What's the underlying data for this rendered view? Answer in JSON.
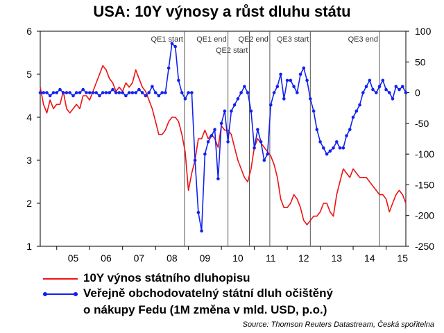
{
  "title": "USA: 10Y výnosy a růst dluhu státu",
  "source": "Source: Thomson Reuters Datastream, Česká spořitelna",
  "colors": {
    "series1": "#ee1111",
    "series2": "#1122ee",
    "axis": "#000000",
    "event_line": "#555555"
  },
  "chart_data": {
    "type": "line",
    "title": "USA: 10Y výnosy a růst dluhu státu",
    "x_tick_labels": [
      "05",
      "06",
      "07",
      "08",
      "09",
      "10",
      "11",
      "12",
      "13",
      "14",
      "15"
    ],
    "xlim": [
      2004.5,
      2015.6
    ],
    "y_left": {
      "lim": [
        1,
        6
      ],
      "ticks": [
        1,
        2,
        3,
        4,
        5,
        6
      ]
    },
    "y_right": {
      "lim": [
        -250,
        100
      ],
      "ticks": [
        -250,
        -200,
        -150,
        -100,
        -50,
        0,
        50,
        100
      ]
    },
    "grid": false,
    "legend_placement": "bottom",
    "events": [
      {
        "label": "QE1 start",
        "x": 2008.88,
        "row": 0
      },
      {
        "label": "QE1 end",
        "x": 2010.2,
        "row": 0
      },
      {
        "label": "QE2 start",
        "x": 2010.85,
        "row": 1
      },
      {
        "label": "QE2 end",
        "x": 2011.47,
        "row": 0
      },
      {
        "label": "QE3 start",
        "x": 2012.7,
        "row": 0
      },
      {
        "label": "QE3 end",
        "x": 2014.8,
        "row": 0
      }
    ],
    "series": [
      {
        "name": "10Y výnos státního dluhopisu",
        "axis": "left",
        "x": [
          2004.5,
          2004.6,
          2004.7,
          2004.8,
          2004.9,
          2005.0,
          2005.1,
          2005.2,
          2005.3,
          2005.4,
          2005.5,
          2005.6,
          2005.7,
          2005.8,
          2005.9,
          2006.0,
          2006.1,
          2006.2,
          2006.3,
          2006.4,
          2006.5,
          2006.6,
          2006.7,
          2006.8,
          2006.9,
          2007.0,
          2007.1,
          2007.2,
          2007.3,
          2007.4,
          2007.5,
          2007.6,
          2007.7,
          2007.8,
          2007.9,
          2008.0,
          2008.1,
          2008.2,
          2008.3,
          2008.4,
          2008.5,
          2008.6,
          2008.7,
          2008.8,
          2008.9,
          2009.0,
          2009.1,
          2009.2,
          2009.3,
          2009.4,
          2009.5,
          2009.6,
          2009.7,
          2009.8,
          2009.9,
          2010.0,
          2010.1,
          2010.2,
          2010.3,
          2010.4,
          2010.5,
          2010.6,
          2010.7,
          2010.8,
          2010.9,
          2011.0,
          2011.1,
          2011.2,
          2011.3,
          2011.4,
          2011.5,
          2011.6,
          2011.7,
          2011.8,
          2011.9,
          2012.0,
          2012.1,
          2012.2,
          2012.3,
          2012.4,
          2012.5,
          2012.6,
          2012.7,
          2012.8,
          2012.9,
          2013.0,
          2013.1,
          2013.2,
          2013.3,
          2013.4,
          2013.5,
          2013.6,
          2013.7,
          2013.8,
          2013.9,
          2014.0,
          2014.1,
          2014.2,
          2014.3,
          2014.4,
          2014.5,
          2014.6,
          2014.7,
          2014.8,
          2014.9,
          2015.0,
          2015.1,
          2015.2,
          2015.3,
          2015.4,
          2015.5,
          2015.6
        ],
        "values": [
          4.7,
          4.3,
          4.1,
          4.4,
          4.2,
          4.3,
          4.3,
          4.6,
          4.2,
          4.1,
          4.2,
          4.3,
          4.2,
          4.5,
          4.5,
          4.4,
          4.6,
          4.8,
          5.0,
          5.2,
          5.1,
          4.9,
          4.8,
          4.6,
          4.7,
          4.6,
          4.8,
          4.7,
          4.8,
          5.1,
          4.9,
          4.7,
          4.6,
          4.4,
          4.2,
          3.9,
          3.6,
          3.6,
          3.7,
          3.9,
          4.0,
          4.0,
          3.9,
          3.6,
          3.2,
          2.3,
          2.7,
          3.0,
          3.5,
          3.5,
          3.7,
          3.5,
          3.6,
          3.5,
          3.3,
          3.8,
          3.7,
          3.7,
          3.6,
          3.3,
          3.0,
          2.8,
          2.6,
          2.5,
          2.8,
          3.3,
          3.5,
          3.4,
          3.3,
          3.2,
          3.1,
          2.9,
          2.6,
          2.1,
          1.9,
          1.9,
          2.0,
          2.2,
          2.1,
          1.9,
          1.6,
          1.5,
          1.6,
          1.7,
          1.7,
          1.8,
          2.0,
          2.0,
          1.8,
          1.7,
          2.2,
          2.5,
          2.8,
          2.7,
          2.6,
          2.8,
          2.7,
          2.6,
          2.6,
          2.6,
          2.5,
          2.4,
          2.3,
          2.2,
          2.2,
          2.1,
          1.8,
          2.0,
          2.2,
          2.3,
          2.2,
          2.0
        ]
      },
      {
        "name": "Veřejně obchodovatelný státní dluh očištěný o nákupy Fedu (1M změna v mld. USD, p.o.)",
        "axis": "right",
        "x": [
          2004.5,
          2004.6,
          2004.7,
          2004.8,
          2004.9,
          2005.0,
          2005.1,
          2005.2,
          2005.3,
          2005.4,
          2005.5,
          2005.6,
          2005.7,
          2005.8,
          2005.9,
          2006.0,
          2006.1,
          2006.2,
          2006.3,
          2006.4,
          2006.5,
          2006.6,
          2006.7,
          2006.8,
          2006.9,
          2007.0,
          2007.1,
          2007.2,
          2007.3,
          2007.4,
          2007.5,
          2007.6,
          2007.7,
          2007.8,
          2007.9,
          2008.0,
          2008.1,
          2008.2,
          2008.3,
          2008.4,
          2008.5,
          2008.6,
          2008.7,
          2008.8,
          2008.9,
          2009.0,
          2009.1,
          2009.2,
          2009.3,
          2009.4,
          2009.5,
          2009.6,
          2009.7,
          2009.8,
          2009.9,
          2010.0,
          2010.1,
          2010.2,
          2010.3,
          2010.4,
          2010.5,
          2010.6,
          2010.7,
          2010.8,
          2010.9,
          2011.0,
          2011.1,
          2011.2,
          2011.3,
          2011.4,
          2011.5,
          2011.6,
          2011.7,
          2011.8,
          2011.9,
          2012.0,
          2012.1,
          2012.2,
          2012.3,
          2012.4,
          2012.5,
          2012.6,
          2012.7,
          2012.8,
          2012.9,
          2013.0,
          2013.1,
          2013.2,
          2013.3,
          2013.4,
          2013.5,
          2013.6,
          2013.7,
          2013.8,
          2013.9,
          2014.0,
          2014.1,
          2014.2,
          2014.3,
          2014.4,
          2014.5,
          2014.6,
          2014.7,
          2014.8,
          2014.9,
          2015.0,
          2015.1,
          2015.2,
          2015.3,
          2015.4,
          2015.5,
          2015.6
        ],
        "values": [
          0,
          0,
          0,
          -5,
          0,
          0,
          5,
          0,
          0,
          0,
          -5,
          0,
          0,
          5,
          0,
          0,
          0,
          0,
          -5,
          0,
          0,
          0,
          5,
          0,
          0,
          0,
          -5,
          0,
          0,
          0,
          5,
          0,
          -5,
          0,
          10,
          0,
          -5,
          0,
          0,
          40,
          80,
          75,
          20,
          0,
          -10,
          0,
          0,
          -110,
          -195,
          -225,
          -100,
          -80,
          -70,
          -60,
          -140,
          -50,
          -30,
          -80,
          -30,
          -20,
          -10,
          0,
          10,
          0,
          -30,
          -90,
          -60,
          -80,
          -110,
          -100,
          -20,
          0,
          10,
          30,
          -10,
          20,
          20,
          10,
          0,
          30,
          40,
          20,
          -10,
          -30,
          -60,
          -80,
          -90,
          -100,
          -95,
          -90,
          -80,
          -90,
          -90,
          -70,
          -60,
          -40,
          -30,
          -20,
          0,
          10,
          20,
          5,
          0,
          10,
          20,
          5,
          0,
          -10,
          10,
          5,
          10,
          0
        ]
      }
    ]
  },
  "legend": [
    {
      "text": "10Y výnos státního dluhopisu"
    },
    {
      "text": "Veřejně obchodovatelný státní dluh očištěný"
    },
    {
      "text": "o nákupy Fedu (1M změna v mld. USD, p.o.)"
    }
  ]
}
